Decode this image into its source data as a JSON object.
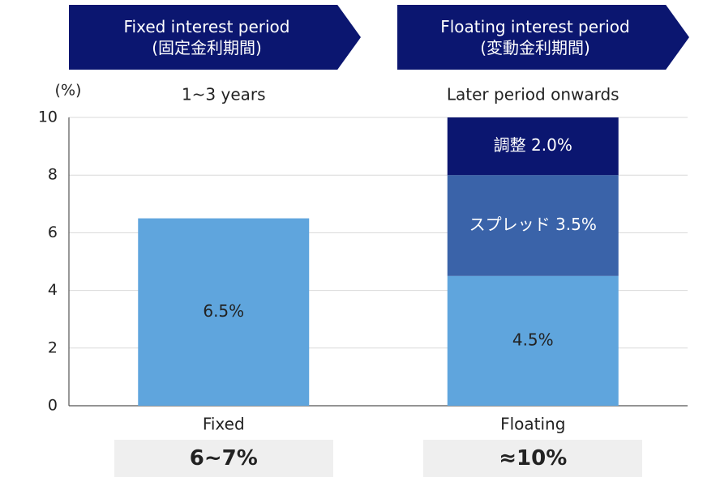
{
  "chart_data": {
    "type": "stacked_bar",
    "y_label": "(%)",
    "categories": [
      "Fixed",
      "Floating"
    ],
    "column_headers": [
      {
        "title": "Fixed interest period",
        "subtitle": "(固定金利期間)",
        "period": "1~3 years",
        "summary": "6~7%"
      },
      {
        "title": "Floating interest period",
        "subtitle": "(変動金利期間)",
        "period": "Later period onwards",
        "summary": "≈10%"
      }
    ],
    "series": [
      {
        "color": "#5fa5dd",
        "label_color": "#222222",
        "values": [
          6.5,
          4.5
        ],
        "value_labels": [
          "6.5%",
          "4.5%"
        ]
      },
      {
        "color": "#3a63a9",
        "label_color": "#ffffff",
        "values": [
          null,
          3.5
        ],
        "value_labels": [
          null,
          "スプレッド 3.5%"
        ]
      },
      {
        "color": "#0b1670",
        "label_color": "#ffffff",
        "values": [
          null,
          2.0
        ],
        "value_labels": [
          null,
          "調整 2.0%"
        ]
      }
    ],
    "ylim": [
      0,
      10
    ],
    "yticks": [
      0,
      2,
      4,
      6,
      8,
      10
    ],
    "grid": true
  }
}
